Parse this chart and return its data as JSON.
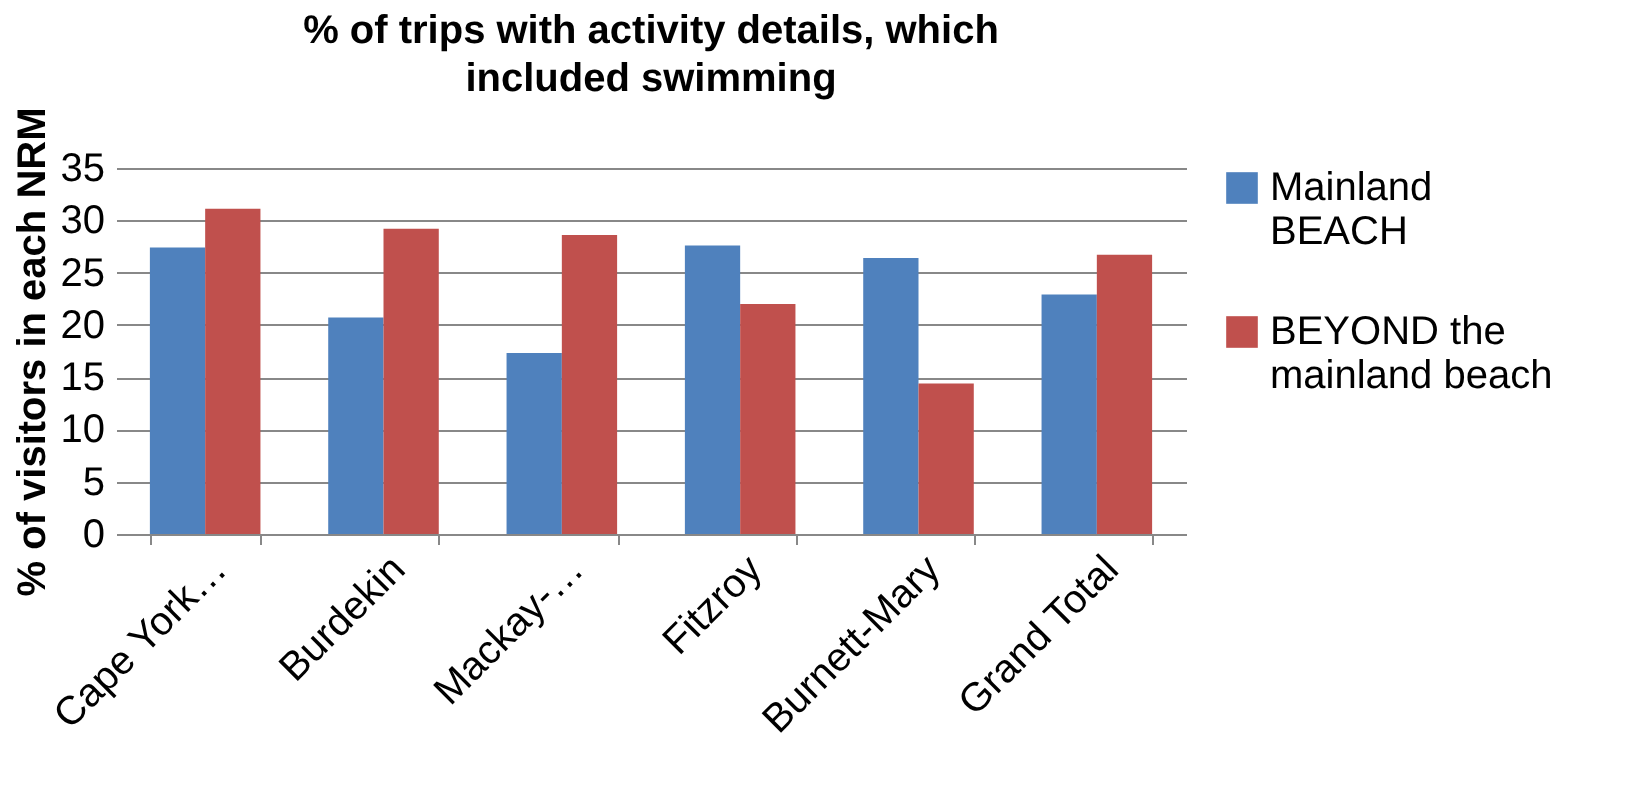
{
  "chart_data": {
    "type": "bar",
    "title": "% of trips with activity details, which included swimming",
    "ylabel": "% of visitors in each NRM",
    "categories": [
      "Cape York…",
      "Burdekin",
      "Mackay-…",
      "Fitzroy",
      "Burnett-Mary",
      "Grand Total"
    ],
    "series": [
      {
        "name": "Mainland BEACH",
        "color": "#4f81bd",
        "values": [
          27.4,
          20.7,
          17.3,
          27.6,
          26.4,
          22.9
        ]
      },
      {
        "name": "BEYOND the mainland beach",
        "color": "#c0504d",
        "values": [
          31.1,
          29.2,
          28.6,
          22.0,
          14.4,
          26.7
        ]
      }
    ],
    "ylim": [
      0,
      35
    ],
    "yticks": [
      0,
      5,
      10,
      15,
      20,
      25,
      30,
      35
    ],
    "grid": "y",
    "legend": "right"
  }
}
